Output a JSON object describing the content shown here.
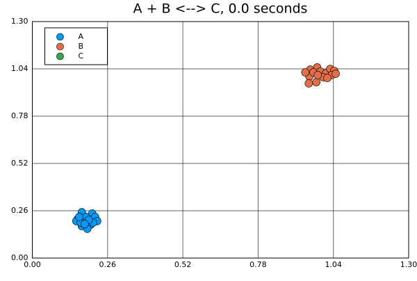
{
  "chart_data": {
    "type": "scatter",
    "title": "A + B <--> C, 0.0 seconds",
    "xlim": [
      0,
      1.3
    ],
    "ylim": [
      0,
      1.3
    ],
    "xticks": [
      {
        "value": 0,
        "label": "0.00"
      },
      {
        "value": 0.26,
        "label": "0.26"
      },
      {
        "value": 0.52,
        "label": "0.52"
      },
      {
        "value": 0.78,
        "label": "0.78"
      },
      {
        "value": 1.04,
        "label": "1.04"
      },
      {
        "value": 1.3,
        "label": "1.30"
      }
    ],
    "yticks": [
      {
        "value": 0,
        "label": "0.00"
      },
      {
        "value": 0.26,
        "label": "0.26"
      },
      {
        "value": 0.52,
        "label": "0.52"
      },
      {
        "value": 0.78,
        "label": "0.78"
      },
      {
        "value": 1.04,
        "label": "1.04"
      },
      {
        "value": 1.3,
        "label": "1.30"
      }
    ],
    "grid": true,
    "legend": "top-left",
    "series": [
      {
        "name": "A",
        "color": "#009af9",
        "x": [
          0.171,
          0.207,
          0.217,
          0.157,
          0.186,
          0.224,
          0.152,
          0.202,
          0.171,
          0.19,
          0.21,
          0.167,
          0.195,
          0.181,
          0.162
        ],
        "values": [
          0.252,
          0.245,
          0.226,
          0.214,
          0.226,
          0.203,
          0.203,
          0.184,
          0.176,
          0.161,
          0.195,
          0.195,
          0.21,
          0.187,
          0.226
        ]
      },
      {
        "name": "B",
        "color": "#e26f46",
        "x": [
          0.96,
          0.984,
          0.957,
          0.971,
          0.995,
          1.015,
          1.029,
          1.043,
          1.034,
          1.005,
          0.981,
          0.955,
          1.019,
          1.048,
          0.986,
          0.943
        ],
        "values": [
          1.036,
          1.048,
          0.998,
          1.021,
          1.025,
          1.017,
          1.04,
          1.029,
          1.006,
          0.994,
          0.967,
          0.96,
          0.99,
          1.013,
          1.006,
          1.021
        ]
      },
      {
        "name": "C",
        "color": "#3da44d",
        "x": [],
        "values": []
      }
    ]
  }
}
